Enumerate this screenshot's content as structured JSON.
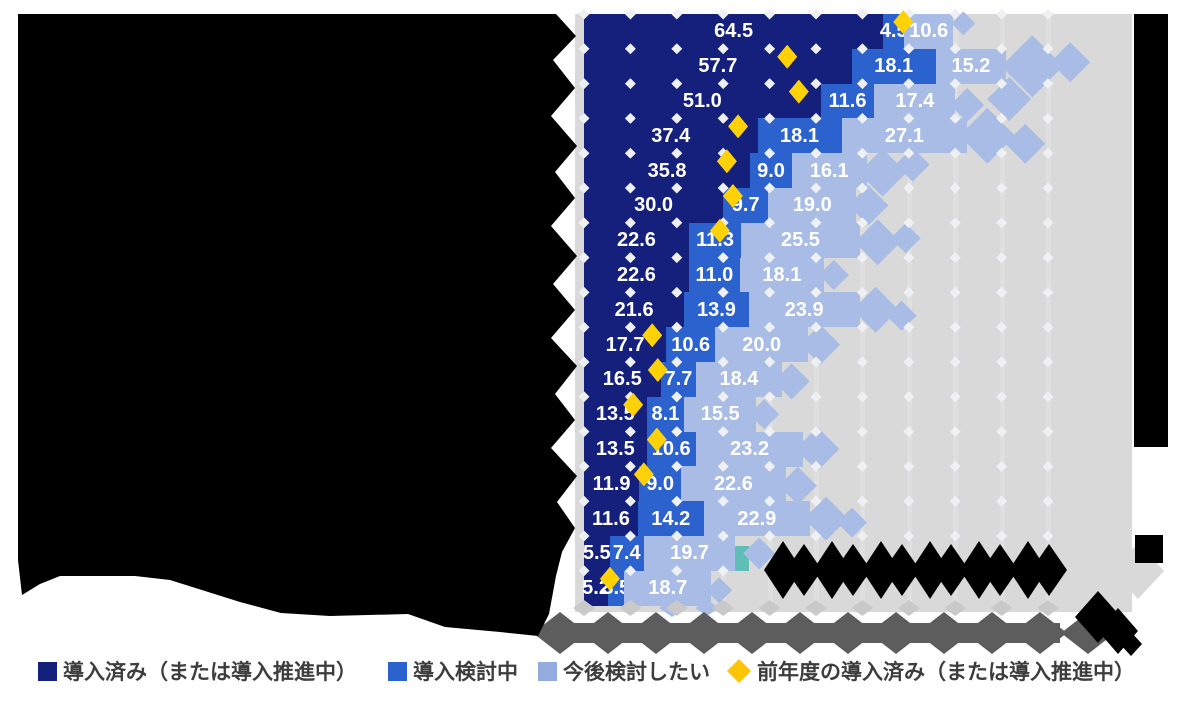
{
  "meta": {
    "description": "Horizontal stacked bar chart (survey adoption-rate style). The chart title, the 17 category labels on the left, the x-axis tick labels, a footnote inside the plot and a vertical text block on the right are all rendered as illegible solid black/grey glyph blocks (tofu) in the screenshot. Bar value labels, markers and the legend are legible.",
    "category_labels_legible": false,
    "axis_tick_labels_legible": false,
    "illegible_blocks": [
      "title-and-category-labels-block (black, left side)",
      "footnote-tofu-diamonds (black, bottom right of plot)",
      "right-vertical-text-block (black, right edge)",
      "axis-tick-tofu-band (dark grey, below plot)",
      "bottom-right-corner-tofu (black)"
    ]
  },
  "legend": {
    "items": [
      {
        "label": "導入済み（または導入推進中）",
        "shape": "square",
        "color": "#14207c"
      },
      {
        "label": "導入検討中",
        "shape": "square",
        "color": "#2b62ce"
      },
      {
        "label": "今後検討したい",
        "shape": "square",
        "color": "#93abdf"
      },
      {
        "label": "前年度の導入済み（または導入推進中）",
        "shape": "diamond",
        "color": "#fec408"
      }
    ]
  },
  "chart_data": {
    "type": "bar",
    "orientation": "horizontal",
    "stacked": true,
    "title": "",
    "xlabel": "",
    "ylabel": "",
    "xlim": [
      0,
      100
    ],
    "gridline_interval": 10,
    "grid": true,
    "legend_position": "bottom",
    "categories": [
      "",
      "",
      "",
      "",
      "",
      "",
      "",
      "",
      "",
      "",
      "",
      "",
      "",
      "",
      "",
      "",
      ""
    ],
    "series": [
      {
        "name": "導入済み（または導入推進中）",
        "color": "#14207c",
        "values": [
          64.5,
          57.7,
          51.0,
          37.4,
          35.8,
          30.0,
          22.6,
          22.6,
          21.6,
          17.7,
          16.5,
          13.5,
          13.5,
          11.9,
          11.6,
          5.5,
          5.2
        ]
      },
      {
        "name": "導入検討中",
        "color": "#2b62ce",
        "values": [
          4.5,
          18.1,
          11.6,
          18.1,
          9.0,
          9.7,
          11.3,
          11.0,
          13.9,
          10.6,
          7.7,
          8.1,
          10.6,
          9.0,
          14.2,
          7.4,
          3.5
        ]
      },
      {
        "name": "今後検討したい",
        "color": "#a8bce5",
        "values": [
          10.6,
          15.2,
          17.4,
          27.1,
          16.1,
          19.0,
          25.5,
          18.1,
          23.9,
          20.0,
          18.4,
          15.5,
          23.2,
          22.6,
          22.9,
          19.7,
          18.7
        ]
      }
    ],
    "minor_segments": [
      {
        "row_index": 15,
        "color": "#5fbfb6",
        "value": 3.0,
        "label": ""
      }
    ],
    "markers": {
      "name": "前年度の導入済み（または導入推進中）",
      "shape": "diamond",
      "color": "#ffd208",
      "values": [
        68.8,
        43.8,
        46.3,
        33.2,
        30.8,
        32.1,
        29.3,
        null,
        null,
        14.7,
        15.9,
        10.6,
        15.7,
        12.9,
        null,
        null,
        5.6
      ]
    }
  },
  "colors": {
    "plot_background": "#d9d9d9",
    "grid_diamond": "#eef0f4",
    "value_label": "#ffffff",
    "axis_band": "#5d5d5d",
    "tick_bump": "#c9c9c9",
    "tofu_black": "#000000",
    "legend_text": "#3d3d3d"
  }
}
